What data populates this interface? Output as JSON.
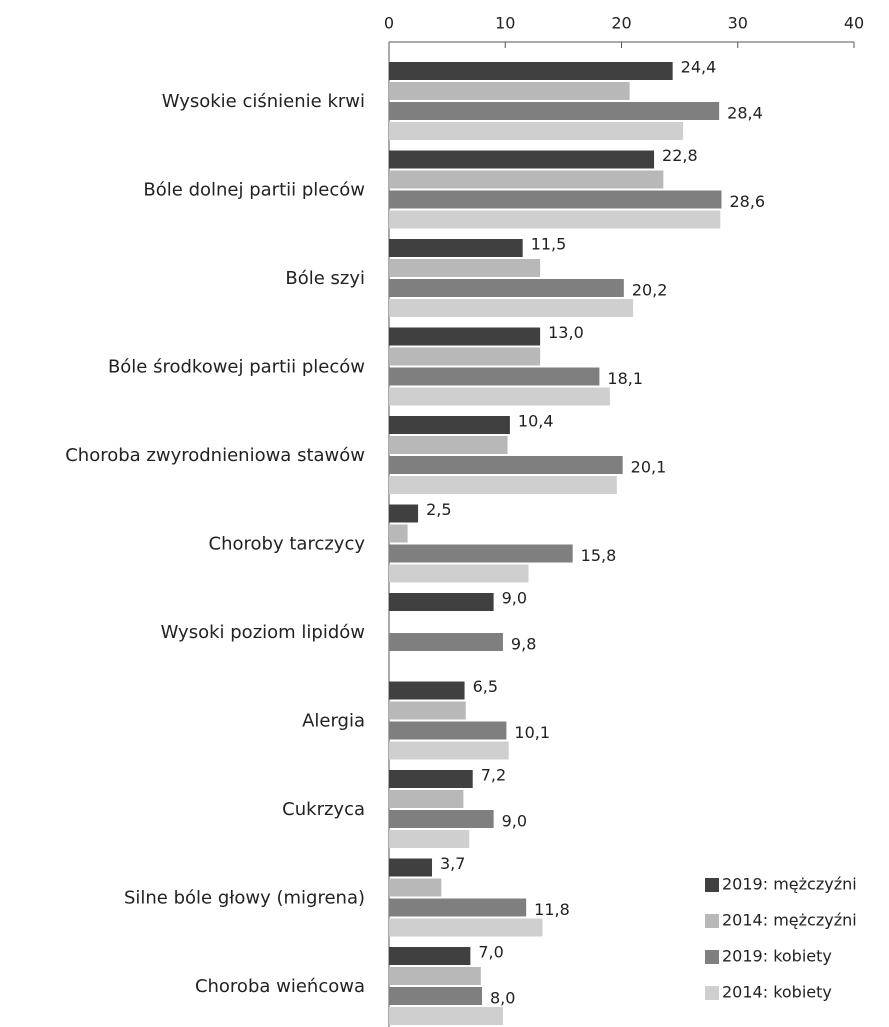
{
  "chart_data": {
    "type": "bar",
    "categories": [
      "Wysokie ciśnienie krwi",
      "Bóle dolnej partii pleców",
      "Bóle szyi",
      "Bóle środkowej partii pleców",
      "Choroba zwyrodnieniowa stawów",
      "Choroby tarczycy",
      "Wysoki poziom lipidów",
      "Alergia",
      "Cukrzyca",
      "Silne bóle głowy (migrena)",
      "Choroba wieńcowa"
    ],
    "series": [
      {
        "name": "2019: mężczyźni",
        "color": "#404040",
        "values": [
          24.4,
          22.8,
          11.5,
          13.0,
          10.4,
          2.5,
          9.0,
          6.5,
          7.2,
          3.7,
          7.0
        ],
        "value_labels": [
          "24,4",
          "22,8",
          "11,5",
          "13,0",
          "10,4",
          "2,5",
          "9,0",
          "6,5",
          "7,2",
          "3,7",
          "7,0"
        ]
      },
      {
        "name": "2014: mężczyźni",
        "color": "#b8b8b8",
        "values": [
          20.7,
          23.6,
          13.0,
          13.0,
          10.2,
          1.6,
          null,
          6.6,
          6.4,
          4.5,
          7.9
        ]
      },
      {
        "name": "2019: kobiety",
        "color": "#7f7f7f",
        "values": [
          28.4,
          28.6,
          20.2,
          18.1,
          20.1,
          15.8,
          9.8,
          10.1,
          9.0,
          11.8,
          8.0
        ],
        "value_labels": [
          "28,4",
          "28,6",
          "20,2",
          "18,1",
          "20,1",
          "15,8",
          "9,8",
          "10,1",
          "9,0",
          "11,8",
          "8,0"
        ]
      },
      {
        "name": "2014: kobiety",
        "color": "#cfcfcf",
        "values": [
          25.3,
          28.5,
          21.0,
          19.0,
          19.6,
          12.0,
          null,
          10.3,
          6.9,
          13.2,
          9.8
        ]
      }
    ],
    "xlim": [
      0,
      40
    ],
    "xticks": [
      0,
      10,
      20,
      30,
      40
    ],
    "legend": "bottom-right"
  }
}
